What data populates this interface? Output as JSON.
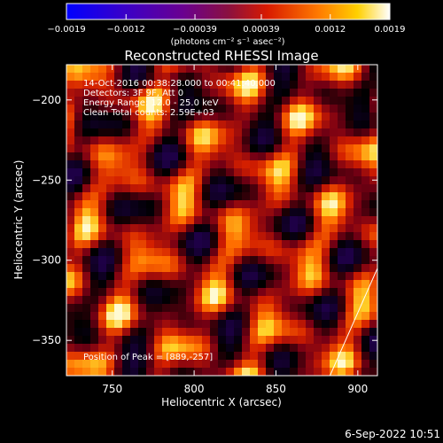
{
  "chart_data": {
    "type": "heatmap",
    "title": "Reconstructed RHESSI Image",
    "xlabel": "Heliocentric X (arcsec)",
    "ylabel": "Heliocentric Y (arcsec)",
    "xlim": [
      722,
      912
    ],
    "ylim": [
      -372,
      -178
    ],
    "x_ticks": [
      750,
      800,
      850,
      900
    ],
    "y_ticks": [
      -200,
      -250,
      -300,
      -350
    ],
    "colorbar": {
      "range": [
        -0.0019,
        0.0019
      ],
      "tick_values": [
        -0.0019,
        -0.0012,
        -0.00039,
        0.00039,
        0.0012,
        0.0019
      ],
      "tick_labels": [
        "-0.0019",
        "-0.0012",
        "-0.00039",
        "0.00039",
        "0.0012",
        "0.0019"
      ],
      "units_label": "(photons cm⁻² s⁻¹ asec⁻²)"
    },
    "annotations": [
      "14-Oct-2016 00:38:28.000 to 00:41:40.000",
      "Detectors: 3F 9F, Att 0",
      "Energy Range: 12.0 - 25.0 keV",
      "Clean     Total counts: 2.59E+03"
    ],
    "peak_label": "Position of Peak = [889,-257]",
    "peak": {
      "x": 889,
      "y": -257
    },
    "limb_line": [
      [
        883,
        -372
      ],
      [
        912,
        -305
      ]
    ],
    "colors": {
      "background": "#000000",
      "text": "#ffffff",
      "limb": "#ffffff"
    }
  },
  "footer": {
    "timestamp": "6-Sep-2022 10:51"
  }
}
